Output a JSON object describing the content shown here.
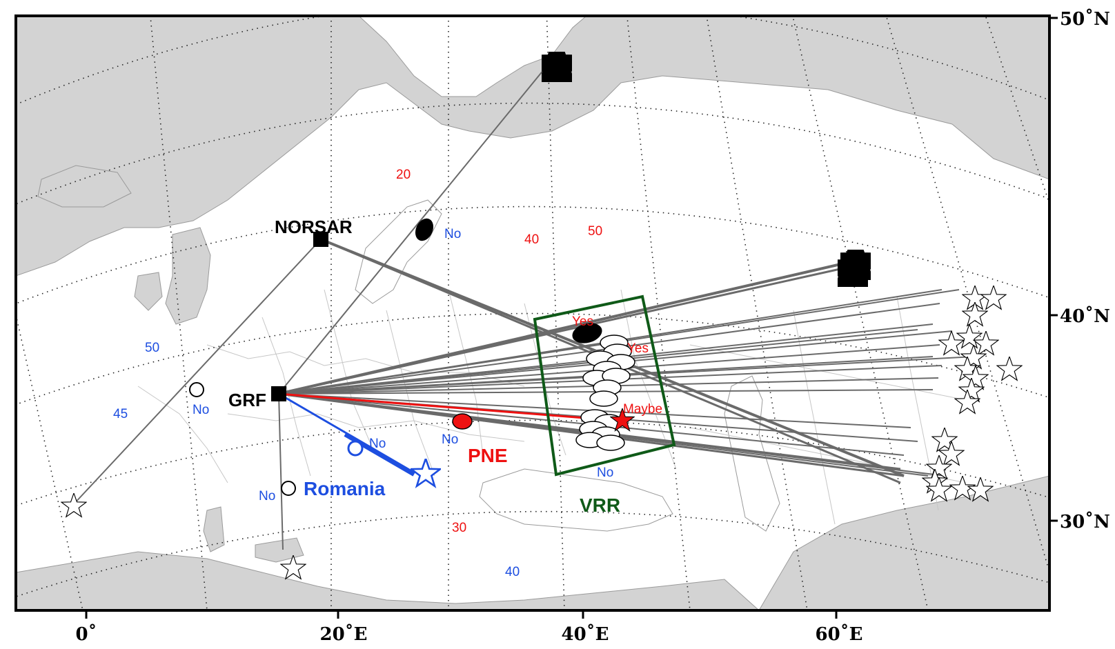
{
  "axes": {
    "x_ticks": [
      "0˚",
      "20˚E",
      "40˚E",
      "60˚E"
    ],
    "y_ticks": [
      "50˚N",
      "40˚N",
      "30˚N"
    ]
  },
  "colors": {
    "land": "#d3d3d3",
    "sea": "#ffffff",
    "paths": "#6a6a6a",
    "pne": "#ee1111",
    "romania": "#1d4ee0",
    "vrr": "#0f5a18"
  },
  "stations": [
    {
      "id": "norsar",
      "label": "NORSAR"
    },
    {
      "id": "grf",
      "label": "GRF"
    }
  ],
  "regions": {
    "vrr_label": "VRR",
    "pne_label": "PNE",
    "romania_label": "Romania"
  },
  "observations": {
    "yes": "Yes",
    "maybe": "Maybe",
    "no": "No"
  },
  "contour_labels": {
    "red": [
      "20",
      "40",
      "50",
      "30"
    ],
    "blue": [
      "50",
      "45",
      "40"
    ]
  }
}
